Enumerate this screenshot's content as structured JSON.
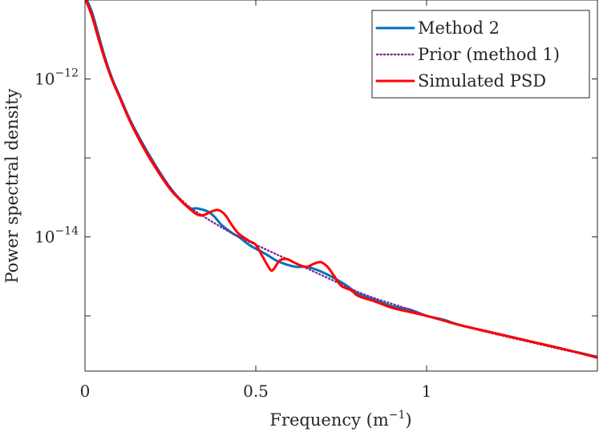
{
  "chart_data": {
    "type": "line",
    "title": "",
    "xlabel": "Frequency (m",
    "xlabel_sup": "−1",
    "xlabel_close": ")",
    "ylabel": "Power spectral density",
    "xlim": [
      0,
      1.5
    ],
    "ylog_lim": [
      -15.7,
      -11.0
    ],
    "x_ticks": [
      {
        "value": 0,
        "label": "0"
      },
      {
        "value": 0.5,
        "label": "0.5"
      },
      {
        "value": 1,
        "label": "1"
      }
    ],
    "y_ticks": [
      {
        "exp": -12,
        "base": "10",
        "sup": "−12"
      },
      {
        "exp": -14,
        "base": "10",
        "sup": "−14"
      }
    ],
    "y_minor_ticks": [
      -11,
      -13,
      -15
    ],
    "legend_position": "top-right",
    "series": [
      {
        "name": "Method 2",
        "color": "#0072BD",
        "style": "solid",
        "x": [
          0,
          0.02,
          0.04,
          0.06,
          0.08,
          0.1,
          0.13,
          0.16,
          0.2,
          0.25,
          0.3,
          0.33,
          0.36,
          0.38,
          0.4,
          0.43,
          0.45,
          0.48,
          0.5,
          0.53,
          0.56,
          0.59,
          0.62,
          0.65,
          0.68,
          0.72,
          0.76,
          0.8,
          0.85,
          0.9,
          0.95,
          1.0,
          1.05,
          1.1,
          1.2,
          1.3,
          1.4,
          1.5
        ],
        "logy": [
          -10.95,
          -11.15,
          -11.45,
          -11.75,
          -12.0,
          -12.2,
          -12.5,
          -12.75,
          -13.05,
          -13.38,
          -13.62,
          -13.64,
          -13.68,
          -13.75,
          -13.85,
          -13.95,
          -14.0,
          -14.1,
          -14.15,
          -14.22,
          -14.3,
          -14.35,
          -14.38,
          -14.38,
          -14.42,
          -14.5,
          -14.6,
          -14.72,
          -14.8,
          -14.88,
          -14.92,
          -15.0,
          -15.05,
          -15.12,
          -15.22,
          -15.32,
          -15.42,
          -15.52
        ]
      },
      {
        "name": "Prior (method 1)",
        "color": "#7E2F8E",
        "style": "dotted",
        "x": [
          0,
          0.02,
          0.04,
          0.06,
          0.08,
          0.1,
          0.13,
          0.16,
          0.2,
          0.25,
          0.3,
          0.35,
          0.4,
          0.45,
          0.5,
          0.55,
          0.6,
          0.65,
          0.7,
          0.75,
          0.8,
          0.85,
          0.9,
          0.95,
          1.0,
          1.1,
          1.2,
          1.3,
          1.4,
          1.5
        ],
        "logy": [
          -10.95,
          -11.15,
          -11.45,
          -11.75,
          -12.0,
          -12.2,
          -12.5,
          -12.75,
          -13.05,
          -13.38,
          -13.6,
          -13.75,
          -13.88,
          -14.0,
          -14.1,
          -14.2,
          -14.3,
          -14.4,
          -14.5,
          -14.6,
          -14.7,
          -14.78,
          -14.85,
          -14.92,
          -15.0,
          -15.12,
          -15.23,
          -15.33,
          -15.43,
          -15.52
        ]
      },
      {
        "name": "Simulated PSD",
        "color": "#FF0000",
        "style": "solid",
        "x": [
          0,
          0.02,
          0.04,
          0.06,
          0.08,
          0.1,
          0.13,
          0.16,
          0.2,
          0.25,
          0.3,
          0.33,
          0.35,
          0.37,
          0.39,
          0.41,
          0.43,
          0.45,
          0.48,
          0.5,
          0.52,
          0.54,
          0.55,
          0.57,
          0.59,
          0.61,
          0.63,
          0.65,
          0.67,
          0.69,
          0.71,
          0.73,
          0.75,
          0.78,
          0.8,
          0.85,
          0.9,
          0.95,
          1.0,
          1.05,
          1.1,
          1.2,
          1.3,
          1.4,
          1.5
        ],
        "logy": [
          -10.98,
          -11.2,
          -11.5,
          -11.78,
          -12.02,
          -12.22,
          -12.52,
          -12.78,
          -13.08,
          -13.4,
          -13.62,
          -13.72,
          -13.72,
          -13.68,
          -13.66,
          -13.72,
          -13.85,
          -13.96,
          -14.05,
          -14.1,
          -14.25,
          -14.4,
          -14.42,
          -14.3,
          -14.28,
          -14.32,
          -14.36,
          -14.38,
          -14.34,
          -14.32,
          -14.38,
          -14.5,
          -14.62,
          -14.68,
          -14.75,
          -14.82,
          -14.9,
          -14.95,
          -15.0,
          -15.06,
          -15.12,
          -15.22,
          -15.32,
          -15.42,
          -15.53
        ]
      }
    ]
  }
}
